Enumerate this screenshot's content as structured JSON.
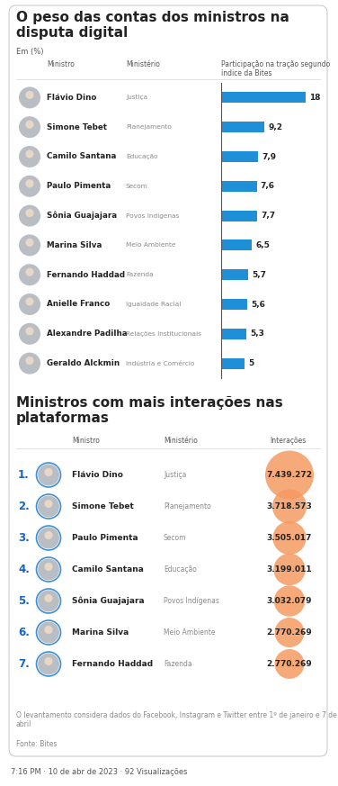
{
  "chart_data": [
    {
      "type": "bar",
      "orientation": "horizontal",
      "title": "O peso das contas dos ministros na disputa digital",
      "subtitle": "Em (%)",
      "column_headers": [
        "Ministro",
        "Ministério",
        "Participação na tração segundo índice da Bites"
      ],
      "categories": [
        "Flávio Dino",
        "Simone Tebet",
        "Camilo Santana",
        "Paulo Pimenta",
        "Sônia Guajajara",
        "Marina Silva",
        "Fernando Haddad",
        "Anielle Franco",
        "Alexandre Padilha",
        "Geraldo Alckmin"
      ],
      "ministries": [
        "Justiça",
        "Planejamento",
        "Educação",
        "Secom",
        "Povos Indígenas",
        "Meio Ambiente",
        "Fazenda",
        "Igualdade Racial",
        "Relações Institucionais",
        "Indústria e Comércio"
      ],
      "values": [
        18,
        9.2,
        7.9,
        7.6,
        7.7,
        6.5,
        5.7,
        5.6,
        5.3,
        5
      ],
      "value_labels": [
        "18",
        "9,2",
        "7,9",
        "7,6",
        "7,7",
        "6,5",
        "5,7",
        "5,6",
        "5,3",
        "5"
      ],
      "color": "#1f8fd8",
      "data_labels": true,
      "tick_labels": false,
      "xlim": [
        0,
        18
      ]
    },
    {
      "type": "bubble",
      "title": "Ministros com mais interações nas plataformas",
      "column_headers": [
        "Ministro",
        "Ministério",
        "Interações"
      ],
      "rank_labels": [
        "1.",
        "2.",
        "3.",
        "4.",
        "5.",
        "6.",
        "7."
      ],
      "categories": [
        "Flávio Dino",
        "Simone Tebet",
        "Paulo Pimenta",
        "Camilo Santana",
        "Sônia Guajajara",
        "Marina Silva",
        "Fernando Haddad"
      ],
      "ministries": [
        "Justiça",
        "Planejamento",
        "Secom",
        "Educação",
        "Povos Indígenas",
        "Meio Ambiente",
        "Fazenda"
      ],
      "values": [
        7439272,
        3718573,
        3505017,
        3199011,
        3032079,
        2770269,
        2770269
      ],
      "value_labels": [
        "7.439.272",
        "3.718.573",
        "3.505.017",
        "3.199.011",
        "3.032.079",
        "2.770.269",
        "2.770.269"
      ],
      "color": "#f59a62",
      "data_labels": true
    }
  ],
  "note": "O levantamento considera dados do Facebook, Instagram e Twitter entre 1º de janeiro e 7 de abril",
  "source": "Fonte: Bites",
  "post_footer": "7:16 PM · 10 de abr de 2023 · 92 Visualizações"
}
